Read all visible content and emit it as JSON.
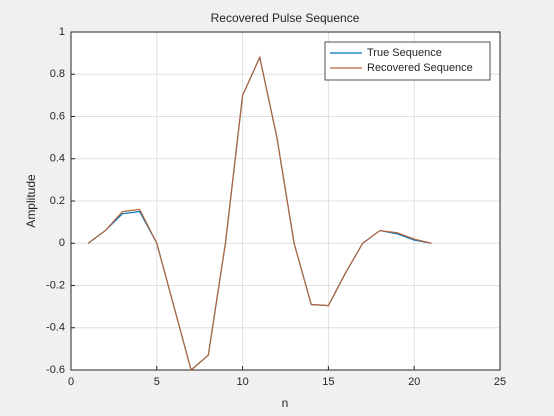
{
  "chart_data": {
    "type": "line",
    "title": "Recovered Pulse Sequence",
    "x_label": "n",
    "y_label": "Amplitude",
    "x": [
      1,
      2,
      3,
      4,
      5,
      6,
      7,
      8,
      9,
      10,
      11,
      12,
      13,
      14,
      15,
      16,
      17,
      18,
      19,
      20,
      21
    ],
    "series": [
      {
        "name": "True Sequence",
        "color": "#0072bd",
        "values": [
          0,
          0.06,
          0.14,
          0.15,
          0,
          -0.3,
          -0.6,
          -0.53,
          0,
          0.7,
          0.88,
          0.5,
          0,
          -0.29,
          -0.295,
          -0.14,
          0,
          0.06,
          0.045,
          0.015,
          0
        ]
      },
      {
        "name": "Recovered Sequence",
        "color": "#b5653a",
        "values": [
          0,
          0.06,
          0.15,
          0.16,
          0,
          -0.3,
          -0.6,
          -0.53,
          0,
          0.7,
          0.88,
          0.5,
          0,
          -0.29,
          -0.295,
          -0.14,
          0,
          0.06,
          0.05,
          0.02,
          0
        ]
      }
    ],
    "xlim": [
      0,
      25
    ],
    "xticks": [
      0,
      5,
      10,
      15,
      20,
      25
    ],
    "ylim": [
      -0.6,
      1
    ],
    "yticks": [
      -0.6,
      -0.4,
      -0.2,
      0,
      0.2,
      0.4,
      0.6,
      0.8,
      1
    ],
    "grid": true,
    "legend": "upper right"
  }
}
